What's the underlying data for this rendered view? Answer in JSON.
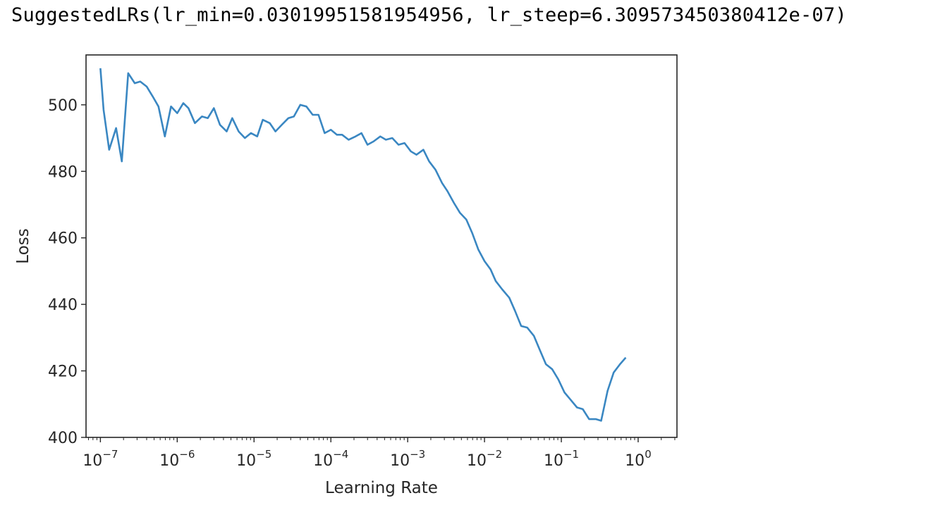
{
  "output_line": "SuggestedLRs(lr_min=0.03019951581954956, lr_steep=6.309573450380412e-07)",
  "colors": {
    "line": "#3a87c2",
    "axes": "#262626",
    "background": "#ffffff"
  },
  "chart_data": {
    "type": "line",
    "title": "",
    "xlabel": "Learning Rate",
    "ylabel": "Loss",
    "xscale": "log",
    "grid": false,
    "xlim": [
      6.5e-08,
      3.2
    ],
    "ylim": [
      400,
      515
    ],
    "xticks": [
      {
        "value": 1e-07,
        "base": "10",
        "exp": "−7"
      },
      {
        "value": 1e-06,
        "base": "10",
        "exp": "−6"
      },
      {
        "value": 1e-05,
        "base": "10",
        "exp": "−5"
      },
      {
        "value": 0.0001,
        "base": "10",
        "exp": "−4"
      },
      {
        "value": 0.001,
        "base": "10",
        "exp": "−3"
      },
      {
        "value": 0.01,
        "base": "10",
        "exp": "−2"
      },
      {
        "value": 0.1,
        "base": "10",
        "exp": "−1"
      },
      {
        "value": 1,
        "base": "10",
        "exp": "0"
      }
    ],
    "yticks": [
      400,
      420,
      440,
      460,
      480,
      500
    ],
    "series": [
      {
        "name": "",
        "x": [
          1e-07,
          1.1e-07,
          1.3e-07,
          1.6e-07,
          1.9e-07,
          2.3e-07,
          2.8e-07,
          3.3e-07,
          4e-07,
          4.8e-07,
          5.7e-07,
          6.9e-07,
          8.3e-07,
          1e-06,
          1.2e-06,
          1.4e-06,
          1.7e-06,
          2.1e-06,
          2.5e-06,
          3e-06,
          3.6e-06,
          4.4e-06,
          5.2e-06,
          6.3e-06,
          7.6e-06,
          9.1e-06,
          1.1e-05,
          1.3e-05,
          1.6e-05,
          1.9e-05,
          2.3e-05,
          2.8e-05,
          3.3e-05,
          4e-05,
          4.8e-05,
          5.8e-05,
          6.9e-05,
          8.3e-05,
          0.0001,
          0.00012,
          0.00014,
          0.00017,
          0.00021,
          0.00025,
          0.0003,
          0.00036,
          0.00044,
          0.00052,
          0.00063,
          0.00076,
          0.00091,
          0.0011,
          0.0013,
          0.0016,
          0.0019,
          0.0023,
          0.0028,
          0.0033,
          0.004,
          0.0048,
          0.0058,
          0.0069,
          0.0083,
          0.01,
          0.012,
          0.014,
          0.017,
          0.021,
          0.025,
          0.03,
          0.036,
          0.044,
          0.052,
          0.063,
          0.076,
          0.091,
          0.11,
          0.13,
          0.16,
          0.19,
          0.23,
          0.28,
          0.33,
          0.4,
          0.48,
          0.58,
          0.69
        ],
        "y": [
          511.0,
          498.5,
          486.5,
          493.0,
          483.0,
          509.5,
          506.5,
          507.0,
          505.5,
          502.5,
          499.5,
          490.5,
          499.5,
          497.5,
          500.5,
          499.0,
          494.5,
          496.5,
          496.0,
          499.0,
          494.0,
          492.0,
          496.0,
          492.0,
          490.0,
          491.5,
          490.5,
          495.5,
          494.5,
          492.0,
          494.0,
          496.0,
          496.5,
          500.0,
          499.5,
          497.0,
          497.0,
          491.5,
          492.5,
          491.0,
          491.0,
          489.5,
          490.5,
          491.5,
          488.0,
          489.0,
          490.5,
          489.5,
          490.0,
          488.0,
          488.5,
          486.0,
          485.0,
          486.5,
          483.0,
          480.5,
          476.5,
          474.0,
          470.5,
          467.5,
          465.5,
          461.5,
          456.5,
          453.0,
          450.5,
          447.0,
          444.5,
          442.0,
          438.0,
          433.5,
          433.0,
          430.5,
          426.5,
          422.0,
          420.5,
          417.5,
          413.5,
          411.5,
          409.0,
          408.5,
          405.5,
          405.5,
          405.0,
          414.0,
          419.5,
          422.0,
          424.0
        ]
      }
    ]
  }
}
